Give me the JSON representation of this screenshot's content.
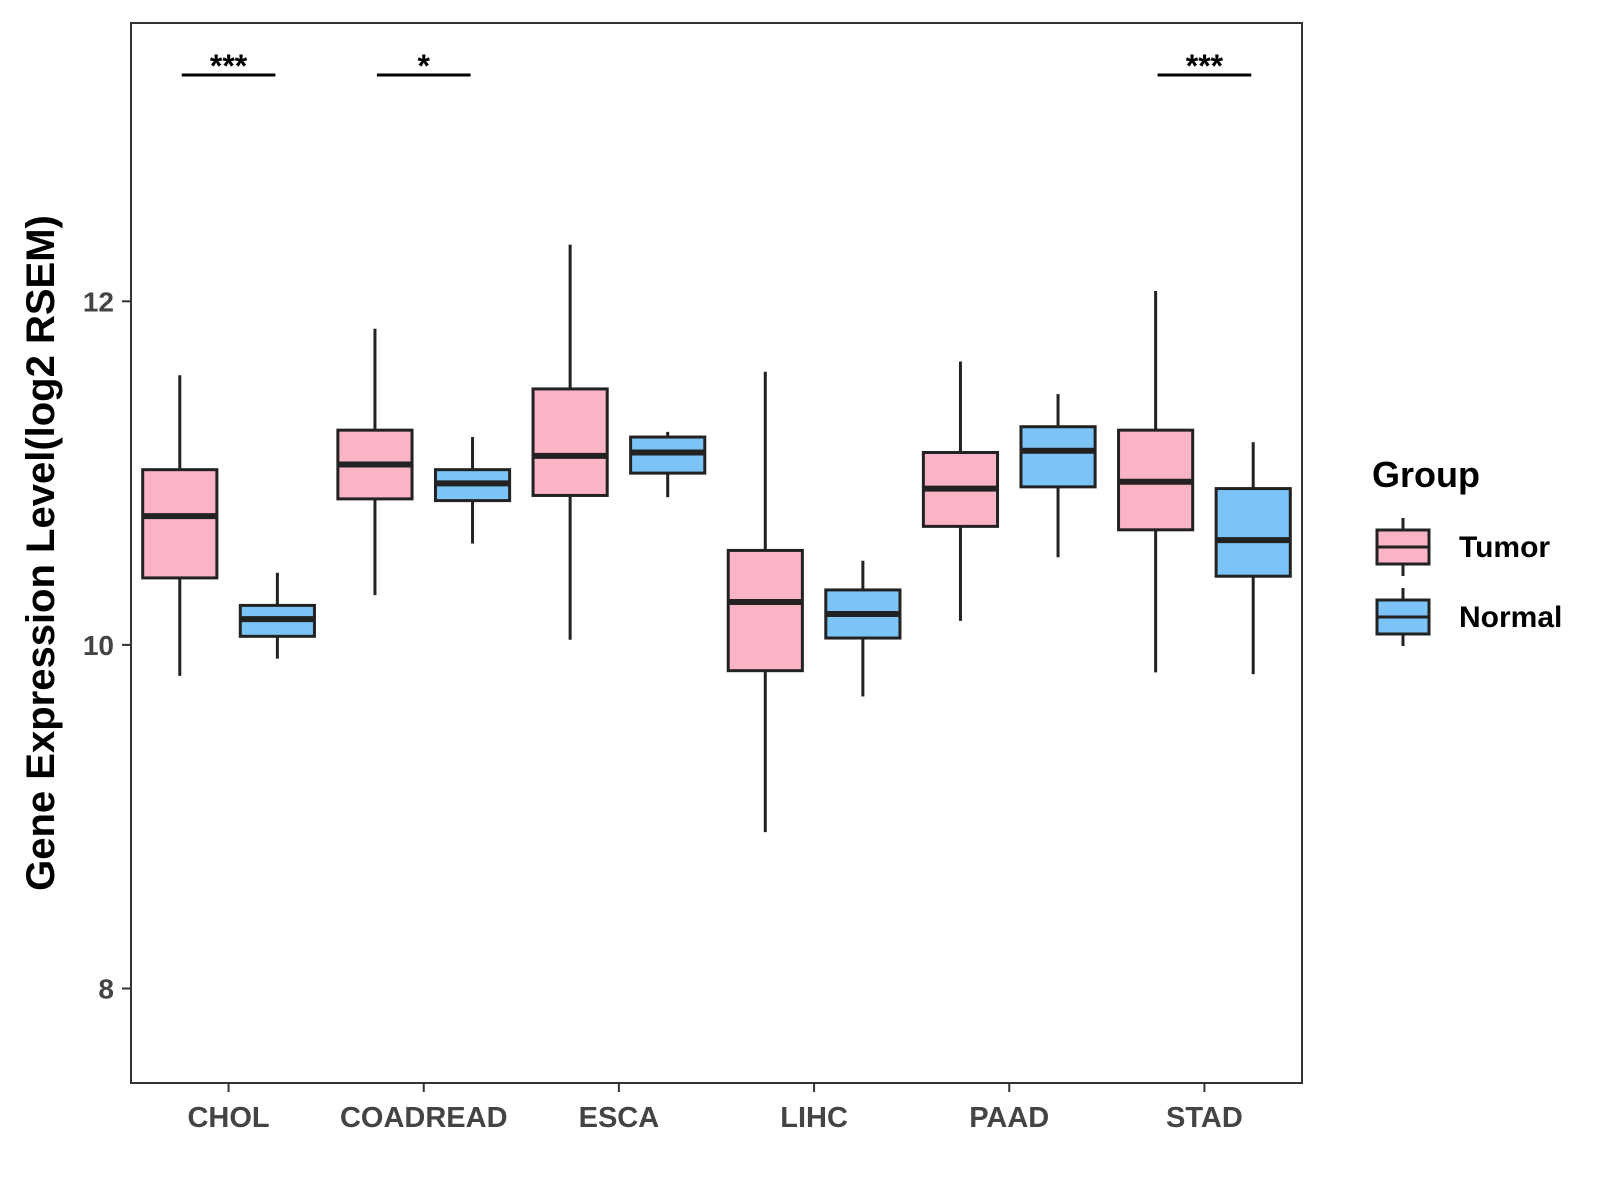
{
  "chart_data": {
    "type": "boxplot",
    "ylabel": "Gene Expression Level(log2 RSEM)",
    "xlabel": "",
    "ylim": [
      7.45,
      13.62
    ],
    "yticks": [
      8,
      10,
      12
    ],
    "grid": false,
    "categories": [
      "CHOL",
      "COADREAD",
      "ESCA",
      "LIHC",
      "PAAD",
      "STAD"
    ],
    "legend": {
      "title": "Group",
      "position": "right",
      "entries": [
        {
          "name": "Tumor",
          "color": "#FBB4C6"
        },
        {
          "name": "Normal",
          "color": "#7CC3F7"
        }
      ]
    },
    "series": [
      {
        "name": "Tumor",
        "color": "#FBB4C6",
        "boxes": [
          {
            "category": "CHOL",
            "min": 9.82,
            "q1": 10.39,
            "median": 10.75,
            "q3": 11.02,
            "max": 11.57
          },
          {
            "category": "COADREAD",
            "min": 10.29,
            "q1": 10.85,
            "median": 11.05,
            "q3": 11.25,
            "max": 11.84
          },
          {
            "category": "ESCA",
            "min": 10.03,
            "q1": 10.87,
            "median": 11.1,
            "q3": 11.49,
            "max": 12.33
          },
          {
            "category": "LIHC",
            "min": 8.91,
            "q1": 9.85,
            "median": 10.25,
            "q3": 10.55,
            "max": 11.59
          },
          {
            "category": "PAAD",
            "min": 10.14,
            "q1": 10.69,
            "median": 10.91,
            "q3": 11.12,
            "max": 11.65
          },
          {
            "category": "STAD",
            "min": 9.84,
            "q1": 10.67,
            "median": 10.95,
            "q3": 11.25,
            "max": 12.06
          }
        ]
      },
      {
        "name": "Normal",
        "color": "#7CC3F7",
        "boxes": [
          {
            "category": "CHOL",
            "min": 9.92,
            "q1": 10.05,
            "median": 10.15,
            "q3": 10.23,
            "max": 10.42
          },
          {
            "category": "COADREAD",
            "min": 10.59,
            "q1": 10.84,
            "median": 10.94,
            "q3": 11.02,
            "max": 11.21
          },
          {
            "category": "ESCA",
            "min": 10.86,
            "q1": 11.0,
            "median": 11.12,
            "q3": 11.21,
            "max": 11.24
          },
          {
            "category": "LIHC",
            "min": 9.7,
            "q1": 10.04,
            "median": 10.18,
            "q3": 10.32,
            "max": 10.49
          },
          {
            "category": "PAAD",
            "min": 10.51,
            "q1": 10.92,
            "median": 11.13,
            "q3": 11.27,
            "max": 11.46
          },
          {
            "category": "STAD",
            "min": 9.83,
            "q1": 10.4,
            "median": 10.61,
            "q3": 10.91,
            "max": 11.18
          }
        ]
      }
    ],
    "annotations": [
      {
        "category": "CHOL",
        "label": "***"
      },
      {
        "category": "COADREAD",
        "label": "*"
      },
      {
        "category": "STAD",
        "label": "***"
      }
    ]
  }
}
